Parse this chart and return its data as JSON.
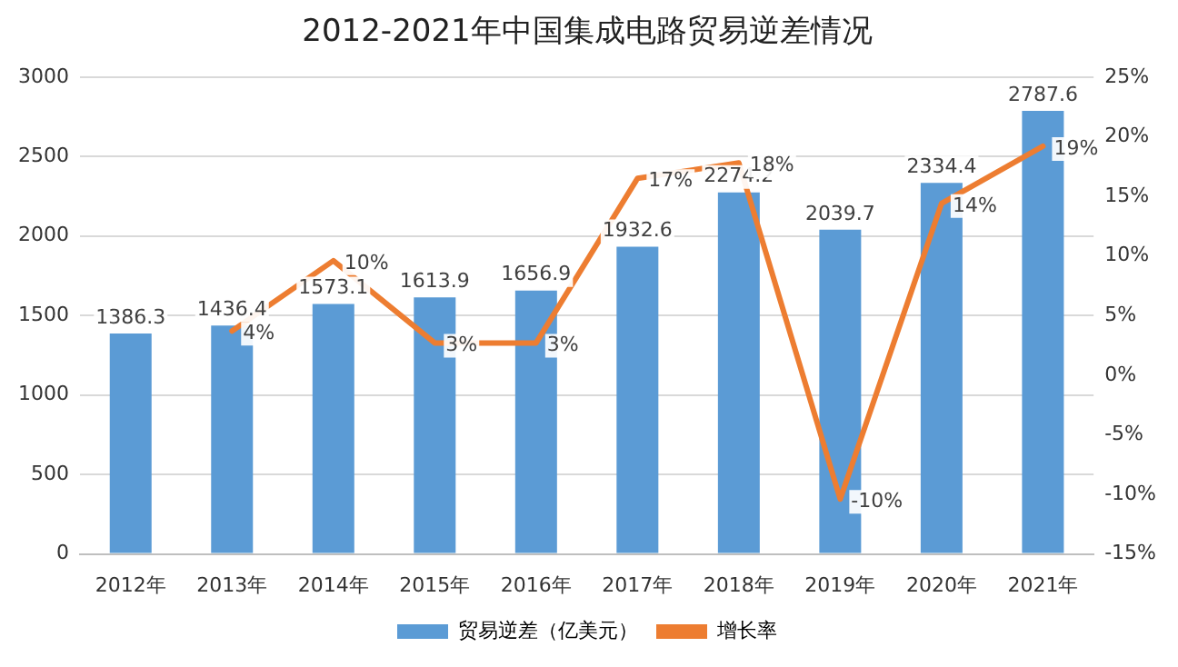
{
  "chart_data": {
    "type": "bar",
    "title": "2012-2021年中国集成电路贸易逆差情况",
    "categories": [
      "2012年",
      "2013年",
      "2014年",
      "2015年",
      "2016年",
      "2017年",
      "2018年",
      "2019年",
      "2020年",
      "2021年"
    ],
    "series": [
      {
        "name": "贸易逆差（亿美元）",
        "color": "#5b9bd5",
        "values": [
          1386.3,
          1436.4,
          1573.1,
          1613.9,
          1656.9,
          1932.6,
          2274.2,
          2039.7,
          2334.4,
          2787.6
        ],
        "value_labels": [
          "1386.3",
          "1436.4",
          "1573.1",
          "1613.9",
          "1656.9",
          "1932.6",
          "2274.2",
          "2039.7",
          "2334.4",
          "2787.6"
        ]
      },
      {
        "name": "增长率",
        "type": "line",
        "axis": "y2",
        "color": "#ed7d31",
        "values": [
          null,
          3.7,
          9.6,
          2.7,
          2.7,
          16.5,
          17.8,
          -10.4,
          14.4,
          19.2
        ],
        "value_labels": [
          null,
          "4%",
          "10%",
          "3%",
          "3%",
          "17%",
          "18%",
          "-10%",
          "14%",
          "19%"
        ]
      }
    ],
    "ylim": [
      0,
      3000
    ],
    "yticks": [
      0,
      500,
      1000,
      1500,
      2000,
      2500,
      3000
    ],
    "y2lim": [
      -15,
      25
    ],
    "y2ticks": [
      {
        "value": -15,
        "label": "-15%"
      },
      {
        "value": -10,
        "label": "-10%"
      },
      {
        "value": -5,
        "label": "-5%"
      },
      {
        "value": 0,
        "label": "0%"
      },
      {
        "value": 5,
        "label": "5%"
      },
      {
        "value": 10,
        "label": "10%"
      },
      {
        "value": 15,
        "label": "15%"
      },
      {
        "value": 20,
        "label": "20%"
      },
      {
        "value": 25,
        "label": "25%"
      }
    ],
    "grid": "y",
    "legend": "bottom",
    "marker": "none",
    "line_style": "solid"
  }
}
